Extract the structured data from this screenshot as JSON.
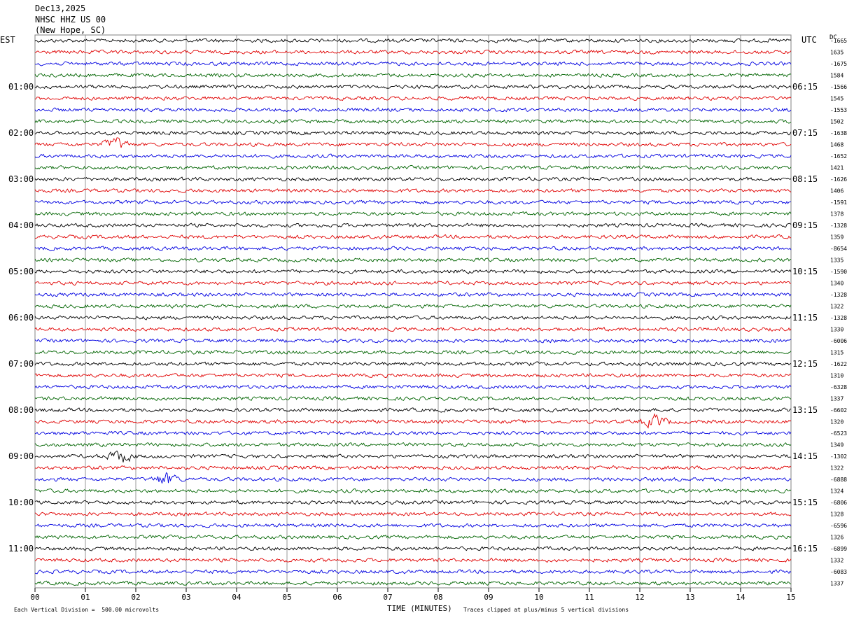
{
  "header": {
    "date": "Dec13,2025",
    "station": "NHSC HHZ US 00",
    "location": "(New Hope, SC)"
  },
  "corner": {
    "left_tz": "EST",
    "right_tz": "UTC",
    "right_col": "DC"
  },
  "colors": {
    "trace_cycle": [
      "#000000",
      "#e00000",
      "#0000e0",
      "#006400"
    ],
    "grid": "#808080",
    "text": "#000000"
  },
  "footer": {
    "scale": "Each Vertical Division =  500.00 microvolts",
    "xlabel": "TIME (MINUTES)",
    "clip_note": "Traces clipped at plus/minus 5 vertical divisions"
  },
  "chart_data": {
    "type": "line",
    "title": "",
    "xlabel": "TIME (MINUTES)",
    "ylabel": "",
    "xlim": [
      0,
      15
    ],
    "x_ticks": [
      "00",
      "01",
      "02",
      "03",
      "04",
      "05",
      "06",
      "07",
      "08",
      "09",
      "10",
      "11",
      "12",
      "13",
      "14",
      "15"
    ],
    "grid": true,
    "trace_count": 48,
    "minutes_per_trace": 15,
    "left_hour_labels": [
      "01:00",
      "02:00",
      "03:00",
      "04:00",
      "05:00",
      "06:00",
      "07:00",
      "08:00",
      "09:00",
      "10:00",
      "11:00"
    ],
    "right_hour_labels": [
      "06:15",
      "07:15",
      "08:15",
      "09:15",
      "10:15",
      "11:15",
      "12:15",
      "13:15",
      "14:15",
      "15:15",
      "16:15"
    ],
    "dc_offsets": [
      "-1665",
      "1635",
      "-1675",
      "1584",
      "-1566",
      "1545",
      "-1553",
      "1502",
      "-1638",
      "1468",
      "-1652",
      "1421",
      "-1626",
      "1406",
      "-1591",
      "1378",
      "-1328",
      "1359",
      "-8654",
      "1335",
      "-1590",
      "1340",
      "-1328",
      "1322",
      "-1328",
      "1330",
      "-6006",
      "1315",
      "-1622",
      "1310",
      "-6328",
      "1337",
      "-6602",
      "1320",
      "-6523",
      "1349",
      "-1302",
      "1322",
      "-6888",
      "1324",
      "-6806",
      "1328",
      "-6596",
      "1326",
      "-6899",
      "1332",
      "-6083",
      "1337"
    ],
    "events": [
      {
        "trace": 9,
        "minute": 1.6,
        "label": ""
      },
      {
        "trace": 33,
        "minute": 12.3,
        "label": ""
      },
      {
        "trace": 36,
        "minute": 1.7,
        "label": ""
      },
      {
        "trace": 38,
        "minute": 2.6,
        "label": ""
      }
    ]
  }
}
